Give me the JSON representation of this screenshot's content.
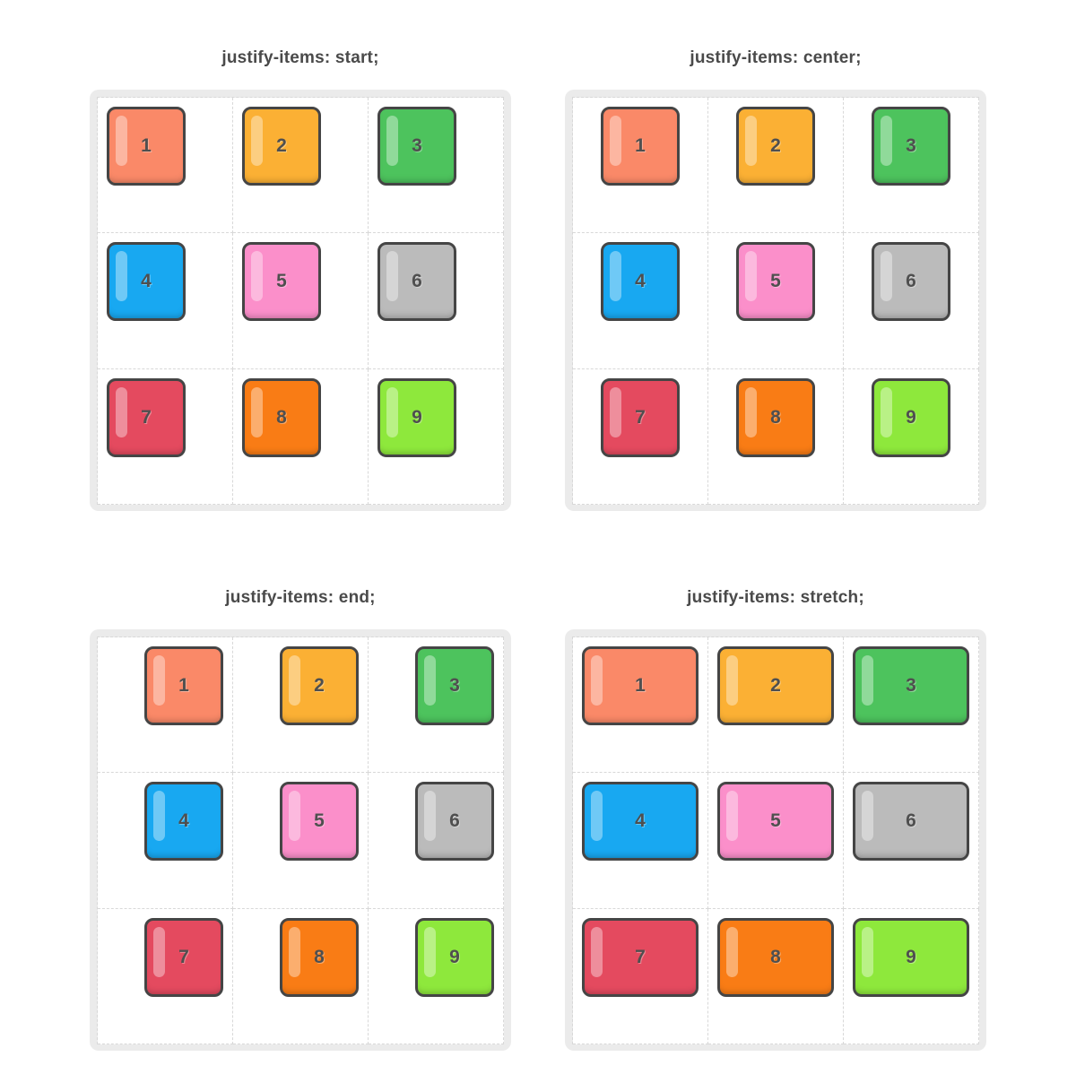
{
  "page": {
    "background": "#ffffff"
  },
  "panels": [
    {
      "id": "start",
      "title": "justify-items: start;"
    },
    {
      "id": "center",
      "title": "justify-items: center;"
    },
    {
      "id": "end",
      "title": "justify-items: end;"
    },
    {
      "id": "stretch",
      "title": "justify-items: stretch;"
    }
  ],
  "items": [
    {
      "label": "1",
      "color": "#FA8968"
    },
    {
      "label": "2",
      "color": "#FBB034"
    },
    {
      "label": "3",
      "color": "#4DC35D"
    },
    {
      "label": "4",
      "color": "#18A8F1"
    },
    {
      "label": "5",
      "color": "#FB8FCA"
    },
    {
      "label": "6",
      "color": "#BBBBBB"
    },
    {
      "label": "7",
      "color": "#E44A5F"
    },
    {
      "label": "8",
      "color": "#F97C15"
    },
    {
      "label": "9",
      "color": "#8EE83C"
    }
  ],
  "style": {
    "item_border": "#454545",
    "container_bg": "#EBEBEB",
    "cell_bg": "#FFFFFF",
    "dash_color": "#D8D8D8",
    "title_color": "#4A4A4A",
    "number_color": "#4F4F4F"
  }
}
